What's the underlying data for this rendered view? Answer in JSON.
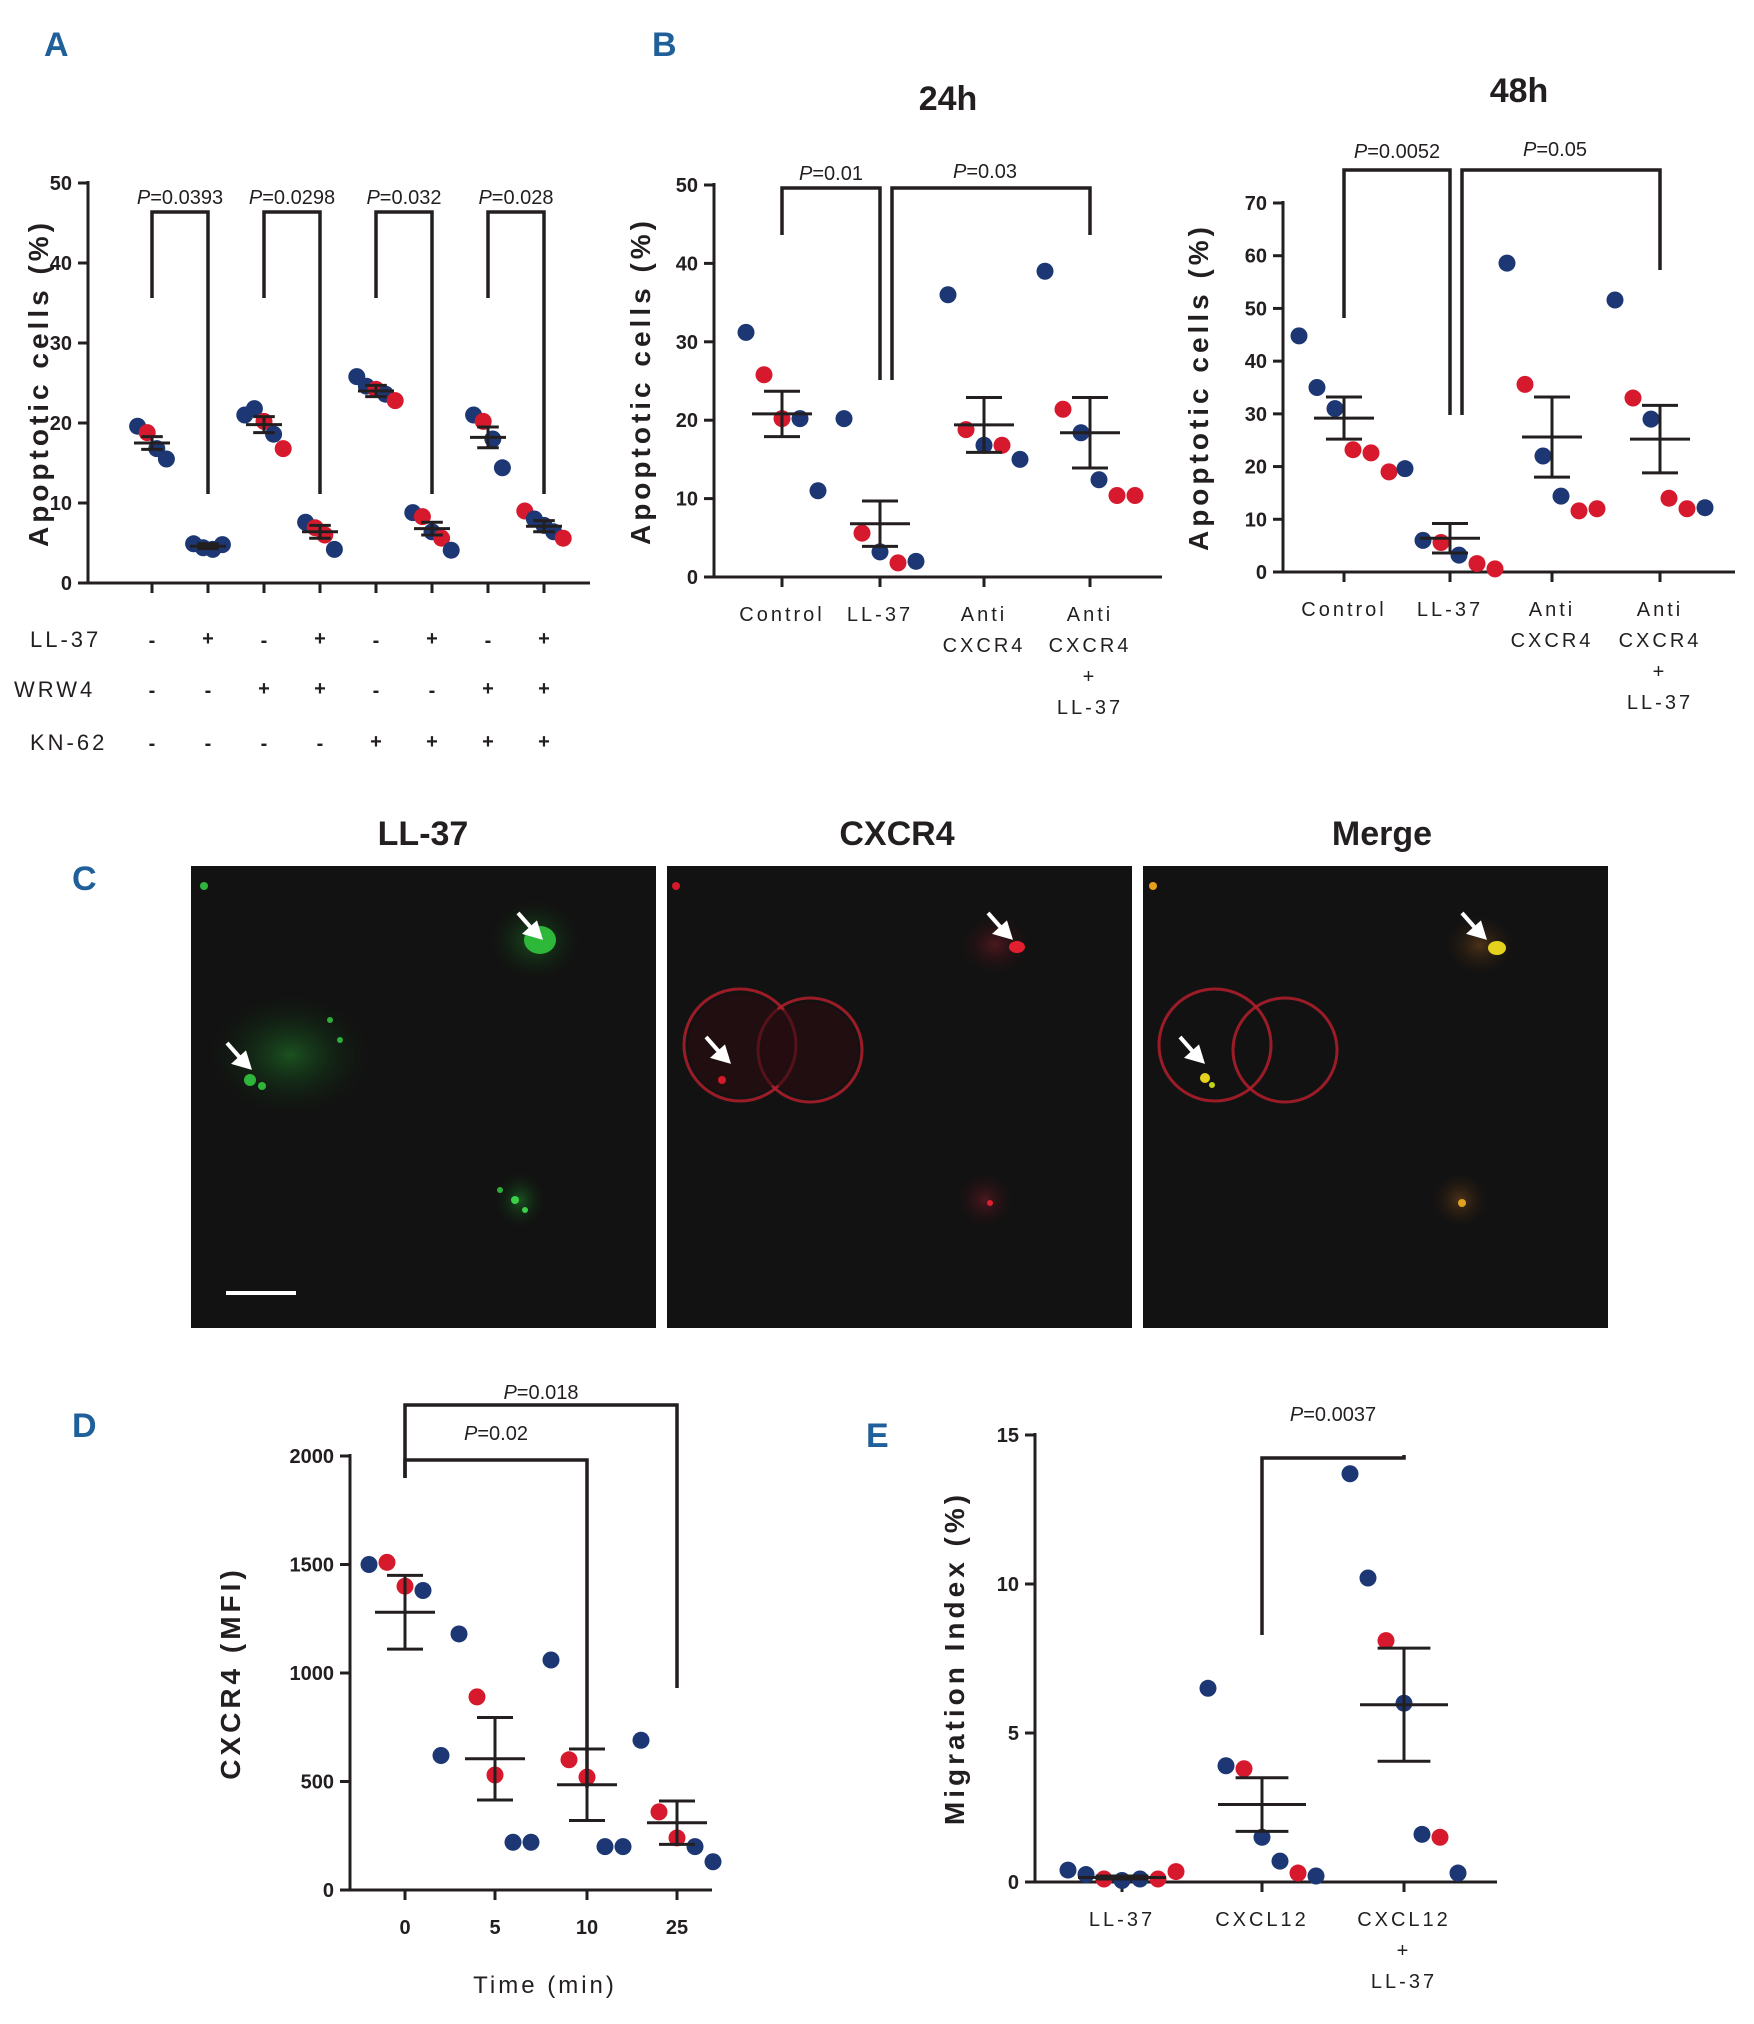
{
  "colors": {
    "blue": "#1c3773",
    "red": "#d7192d",
    "panel_letter": "#1f5f9a"
  },
  "panel_labels": {
    "a": "A",
    "b": "B",
    "c": "C",
    "d": "D",
    "e": "E"
  },
  "chart_data": [
    {
      "id": "A",
      "type": "scatter",
      "ylabel": "Apoptotic cells (%)",
      "ylim": [
        0,
        50
      ],
      "yticks": [
        "0",
        "10",
        "20",
        "30",
        "40",
        "50"
      ],
      "condition_rows": [
        {
          "label": "LL-37",
          "values": [
            "-",
            "+",
            "-",
            "+",
            "-",
            "+",
            "-",
            "+"
          ]
        },
        {
          "label": "WRW4",
          "values": [
            "-",
            "-",
            "+",
            "+",
            "-",
            "-",
            "+",
            "+"
          ]
        },
        {
          "label": "KN-62",
          "values": [
            "-",
            "-",
            "-",
            "-",
            "+",
            "+",
            "+",
            "+"
          ]
        }
      ],
      "groups": [
        {
          "mean": 17.5,
          "sem": 0.8,
          "points": [
            {
              "v": 19.6,
              "c": "blue"
            },
            {
              "v": 18.8,
              "c": "red"
            },
            {
              "v": 16.8,
              "c": "blue"
            },
            {
              "v": 15.5,
              "c": "blue"
            }
          ]
        },
        {
          "mean": 4.6,
          "sem": 0.3,
          "points": [
            {
              "v": 4.9,
              "c": "blue"
            },
            {
              "v": 4.4,
              "c": "blue"
            },
            {
              "v": 4.2,
              "c": "blue"
            },
            {
              "v": 4.8,
              "c": "blue"
            }
          ]
        },
        {
          "mean": 19.8,
          "sem": 1.0,
          "points": [
            {
              "v": 21.0,
              "c": "blue"
            },
            {
              "v": 21.8,
              "c": "blue"
            },
            {
              "v": 20.2,
              "c": "red"
            },
            {
              "v": 18.6,
              "c": "blue"
            },
            {
              "v": 16.8,
              "c": "red"
            }
          ]
        },
        {
          "mean": 6.4,
          "sem": 0.8,
          "points": [
            {
              "v": 7.6,
              "c": "blue"
            },
            {
              "v": 6.9,
              "c": "red"
            },
            {
              "v": 6.0,
              "c": "red"
            },
            {
              "v": 4.2,
              "c": "blue"
            }
          ]
        },
        {
          "mean": 24.0,
          "sem": 0.7,
          "points": [
            {
              "v": 25.8,
              "c": "blue"
            },
            {
              "v": 24.6,
              "c": "blue"
            },
            {
              "v": 24.2,
              "c": "red"
            },
            {
              "v": 23.6,
              "c": "blue"
            },
            {
              "v": 22.8,
              "c": "red"
            }
          ]
        },
        {
          "mean": 6.8,
          "sem": 0.8,
          "points": [
            {
              "v": 8.8,
              "c": "blue"
            },
            {
              "v": 8.3,
              "c": "red"
            },
            {
              "v": 6.4,
              "c": "blue"
            },
            {
              "v": 5.6,
              "c": "red"
            },
            {
              "v": 4.1,
              "c": "blue"
            }
          ]
        },
        {
          "mean": 18.2,
          "sem": 1.3,
          "points": [
            {
              "v": 21.0,
              "c": "blue"
            },
            {
              "v": 20.2,
              "c": "red"
            },
            {
              "v": 18.0,
              "c": "blue"
            },
            {
              "v": 14.4,
              "c": "blue"
            }
          ]
        },
        {
          "mean": 7.1,
          "sem": 0.7,
          "points": [
            {
              "v": 9.0,
              "c": "red"
            },
            {
              "v": 8.0,
              "c": "blue"
            },
            {
              "v": 7.2,
              "c": "blue"
            },
            {
              "v": 6.4,
              "c": "blue"
            },
            {
              "v": 5.6,
              "c": "red"
            }
          ]
        }
      ],
      "comparisons": [
        {
          "from": 0,
          "to": 1,
          "label": "P=0.0393"
        },
        {
          "from": 2,
          "to": 3,
          "label": "P=0.0298"
        },
        {
          "from": 4,
          "to": 5,
          "label": "P=0.032"
        },
        {
          "from": 6,
          "to": 7,
          "label": "P=0.028"
        }
      ]
    },
    {
      "id": "B1",
      "type": "scatter",
      "title": "24h",
      "ylabel": "Apoptotic cells (%)",
      "ylim": [
        0,
        50
      ],
      "yticks": [
        "0",
        "10",
        "20",
        "30",
        "40",
        "50"
      ],
      "categories": [
        [
          "Control"
        ],
        [
          "LL-37"
        ],
        [
          "Anti",
          "CXCR4"
        ],
        [
          "Anti",
          "CXCR4",
          "+",
          "LL-37"
        ]
      ],
      "groups": [
        {
          "mean": 20.8,
          "sem": 2.9,
          "points": [
            {
              "v": 31.2,
              "c": "blue"
            },
            {
              "v": 25.8,
              "c": "red"
            },
            {
              "v": 20.2,
              "c": "red"
            },
            {
              "v": 20.2,
              "c": "blue"
            },
            {
              "v": 11.0,
              "c": "blue"
            }
          ]
        },
        {
          "mean": 6.8,
          "sem": 2.9,
          "points": [
            {
              "v": 20.2,
              "c": "blue"
            },
            {
              "v": 5.6,
              "c": "red"
            },
            {
              "v": 3.2,
              "c": "blue"
            },
            {
              "v": 1.8,
              "c": "red"
            },
            {
              "v": 2.0,
              "c": "blue"
            }
          ]
        },
        {
          "mean": 19.4,
          "sem": 3.5,
          "points": [
            {
              "v": 36.0,
              "c": "blue"
            },
            {
              "v": 18.8,
              "c": "red"
            },
            {
              "v": 16.8,
              "c": "blue"
            },
            {
              "v": 16.8,
              "c": "red"
            },
            {
              "v": 15.0,
              "c": "blue"
            }
          ]
        },
        {
          "mean": 18.4,
          "sem": 4.5,
          "points": [
            {
              "v": 39.0,
              "c": "blue"
            },
            {
              "v": 21.4,
              "c": "red"
            },
            {
              "v": 18.4,
              "c": "blue"
            },
            {
              "v": 12.4,
              "c": "blue"
            },
            {
              "v": 10.4,
              "c": "red"
            },
            {
              "v": 10.4,
              "c": "red"
            }
          ]
        }
      ],
      "comparisons": [
        {
          "from": 0,
          "to": 1,
          "label": "P=0.01"
        },
        {
          "from": 1,
          "to": 3,
          "label": "P=0.03"
        }
      ]
    },
    {
      "id": "B2",
      "type": "scatter",
      "title": "48h",
      "ylabel": "Apoptotic cells (%)",
      "ylim": [
        0,
        70
      ],
      "yticks": [
        "0",
        "10",
        "20",
        "30",
        "40",
        "50",
        "60",
        "70"
      ],
      "categories": [
        [
          "Control"
        ],
        [
          "LL-37"
        ],
        [
          "Anti",
          "CXCR4"
        ],
        [
          "Anti",
          "CXCR4",
          "+",
          "LL-37"
        ]
      ],
      "groups": [
        {
          "mean": 29.2,
          "sem": 4.0,
          "points": [
            {
              "v": 44.8,
              "c": "blue"
            },
            {
              "v": 35.0,
              "c": "blue"
            },
            {
              "v": 31.0,
              "c": "blue"
            },
            {
              "v": 23.2,
              "c": "red"
            },
            {
              "v": 22.6,
              "c": "red"
            },
            {
              "v": 19.0,
              "c": "red"
            }
          ]
        },
        {
          "mean": 6.4,
          "sem": 2.8,
          "points": [
            {
              "v": 19.6,
              "c": "blue"
            },
            {
              "v": 6.0,
              "c": "blue"
            },
            {
              "v": 5.6,
              "c": "red"
            },
            {
              "v": 3.2,
              "c": "blue"
            },
            {
              "v": 1.6,
              "c": "red"
            },
            {
              "v": 0.6,
              "c": "red"
            }
          ]
        },
        {
          "mean": 25.6,
          "sem": 7.6,
          "points": [
            {
              "v": 58.6,
              "c": "blue"
            },
            {
              "v": 35.6,
              "c": "red"
            },
            {
              "v": 22.0,
              "c": "blue"
            },
            {
              "v": 14.4,
              "c": "blue"
            },
            {
              "v": 11.6,
              "c": "red"
            },
            {
              "v": 12.0,
              "c": "red"
            }
          ]
        },
        {
          "mean": 25.2,
          "sem": 6.4,
          "points": [
            {
              "v": 51.6,
              "c": "blue"
            },
            {
              "v": 33.0,
              "c": "red"
            },
            {
              "v": 29.0,
              "c": "blue"
            },
            {
              "v": 14.0,
              "c": "red"
            },
            {
              "v": 12.0,
              "c": "red"
            },
            {
              "v": 12.2,
              "c": "blue"
            }
          ]
        }
      ],
      "comparisons": [
        {
          "from": 0,
          "to": 1,
          "label": "P=0.0052"
        },
        {
          "from": 1,
          "to": 3,
          "label": "P=0.05"
        }
      ]
    },
    {
      "id": "D",
      "type": "scatter",
      "ylabel": "CXCR4 (MFI)",
      "xlabel": "Time (min)",
      "ylim": [
        0,
        2000
      ],
      "yticks": [
        "0",
        "500",
        "1000",
        "1500",
        "2000"
      ],
      "categories": [
        [
          "0"
        ],
        [
          "5"
        ],
        [
          "10"
        ],
        [
          "25"
        ]
      ],
      "groups": [
        {
          "mean": 1280,
          "sem": 170,
          "points": [
            {
              "v": 1500,
              "c": "blue"
            },
            {
              "v": 1510,
              "c": "red"
            },
            {
              "v": 1400,
              "c": "red"
            },
            {
              "v": 1380,
              "c": "blue"
            },
            {
              "v": 620,
              "c": "blue"
            }
          ]
        },
        {
          "mean": 605,
          "sem": 190,
          "points": [
            {
              "v": 1180,
              "c": "blue"
            },
            {
              "v": 890,
              "c": "red"
            },
            {
              "v": 530,
              "c": "red"
            },
            {
              "v": 220,
              "c": "blue"
            },
            {
              "v": 220,
              "c": "blue"
            }
          ]
        },
        {
          "mean": 485,
          "sem": 165,
          "points": [
            {
              "v": 1060,
              "c": "blue"
            },
            {
              "v": 600,
              "c": "red"
            },
            {
              "v": 520,
              "c": "red"
            },
            {
              "v": 200,
              "c": "blue"
            },
            {
              "v": 200,
              "c": "blue"
            }
          ]
        },
        {
          "mean": 310,
          "sem": 100,
          "points": [
            {
              "v": 690,
              "c": "blue"
            },
            {
              "v": 360,
              "c": "red"
            },
            {
              "v": 240,
              "c": "red"
            },
            {
              "v": 200,
              "c": "blue"
            },
            {
              "v": 130,
              "c": "blue"
            }
          ]
        }
      ],
      "comparisons": [
        {
          "from": 0,
          "to": 2,
          "label": "P=0.02"
        },
        {
          "from": 0,
          "to": 3,
          "label": "P=0.018"
        }
      ]
    },
    {
      "id": "E",
      "type": "scatter",
      "ylabel": "Migration Index (%)",
      "ylim": [
        0,
        15
      ],
      "yticks": [
        "0",
        "5",
        "10",
        "15"
      ],
      "categories": [
        [
          "LL-37"
        ],
        [
          "CXCL12"
        ],
        [
          "CXCL12",
          "+",
          "LL-37"
        ]
      ],
      "groups": [
        {
          "mean": 0.15,
          "sem": 0.05,
          "points": [
            {
              "v": 0.4,
              "c": "blue"
            },
            {
              "v": 0.25,
              "c": "blue"
            },
            {
              "v": 0.1,
              "c": "red"
            },
            {
              "v": 0.05,
              "c": "blue"
            },
            {
              "v": 0.1,
              "c": "blue"
            },
            {
              "v": 0.1,
              "c": "red"
            },
            {
              "v": 0.35,
              "c": "red"
            }
          ]
        },
        {
          "mean": 2.6,
          "sem": 0.9,
          "points": [
            {
              "v": 6.5,
              "c": "blue"
            },
            {
              "v": 3.9,
              "c": "blue"
            },
            {
              "v": 3.8,
              "c": "red"
            },
            {
              "v": 1.5,
              "c": "blue"
            },
            {
              "v": 0.7,
              "c": "blue"
            },
            {
              "v": 0.3,
              "c": "red"
            },
            {
              "v": 0.2,
              "c": "blue"
            }
          ]
        },
        {
          "mean": 5.95,
          "sem": 1.9,
          "points": [
            {
              "v": 13.7,
              "c": "blue"
            },
            {
              "v": 10.2,
              "c": "blue"
            },
            {
              "v": 8.1,
              "c": "red"
            },
            {
              "v": 6.0,
              "c": "blue"
            },
            {
              "v": 1.6,
              "c": "blue"
            },
            {
              "v": 1.5,
              "c": "red"
            },
            {
              "v": 0.3,
              "c": "blue"
            }
          ]
        }
      ],
      "comparisons": [
        {
          "from": 1,
          "to": 2,
          "label": "P=0.0037"
        }
      ]
    }
  ],
  "micrographs": [
    {
      "title": "LL-37",
      "channel": "green"
    },
    {
      "title": "CXCR4",
      "channel": "red"
    },
    {
      "title": "Merge",
      "channel": "merge"
    }
  ]
}
